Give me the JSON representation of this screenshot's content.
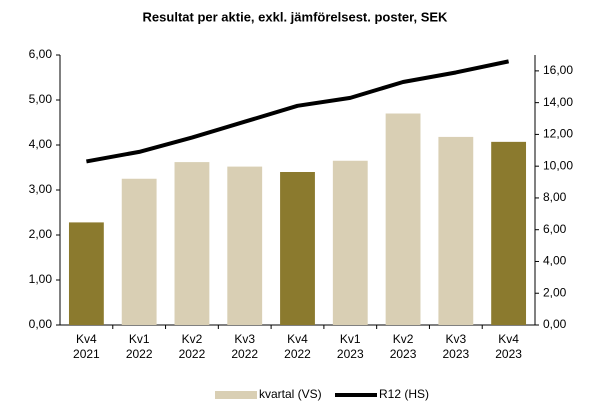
{
  "chart_data": {
    "type": "bar-line",
    "title": "Resultat per aktie, exkl. jämförelsest. poster, SEK",
    "categories": [
      [
        "Kv4",
        "2021"
      ],
      [
        "Kv1",
        "2022"
      ],
      [
        "Kv2",
        "2022"
      ],
      [
        "Kv3",
        "2022"
      ],
      [
        "Kv4",
        "2022"
      ],
      [
        "Kv1",
        "2023"
      ],
      [
        "Kv2",
        "2023"
      ],
      [
        "Kv3",
        "2023"
      ],
      [
        "Kv4",
        "2023"
      ]
    ],
    "series": [
      {
        "name": "kvartal (VS)",
        "type": "bar",
        "color": "#d9cfb4",
        "colors": [
          "#8b7a2e",
          "#d9cfb4",
          "#d9cfb4",
          "#d9cfb4",
          "#8b7a2e",
          "#d9cfb4",
          "#d9cfb4",
          "#d9cfb4",
          "#8b7a2e"
        ],
        "values": [
          2.28,
          3.25,
          3.62,
          3.52,
          3.4,
          3.65,
          4.7,
          4.18,
          4.07
        ]
      },
      {
        "name": "R12 (HS)",
        "type": "line",
        "axis": "y2",
        "color": "#000000",
        "values": [
          10.3,
          10.9,
          11.8,
          12.8,
          13.8,
          14.3,
          15.3,
          15.9,
          16.6
        ]
      }
    ],
    "ylim": [
      0,
      6
    ],
    "yticks": [
      {
        "value": 0,
        "label": "0,00"
      },
      {
        "value": 1,
        "label": "1,00"
      },
      {
        "value": 2,
        "label": "2,00"
      },
      {
        "value": 3,
        "label": "3,00"
      },
      {
        "value": 4,
        "label": "4,00"
      },
      {
        "value": 5,
        "label": "5,00"
      },
      {
        "value": 6,
        "label": "6,00"
      }
    ],
    "y2lim": [
      0,
      17
    ],
    "y2ticks": [
      {
        "value": 0,
        "label": "0,00"
      },
      {
        "value": 2,
        "label": "2,00"
      },
      {
        "value": 4,
        "label": "4,00"
      },
      {
        "value": 6,
        "label": "6,00"
      },
      {
        "value": 8,
        "label": "8,00"
      },
      {
        "value": 10,
        "label": "10,00"
      },
      {
        "value": 12,
        "label": "12,00"
      },
      {
        "value": 14,
        "label": "14,00"
      },
      {
        "value": 16,
        "label": "16,00"
      }
    ],
    "legend": "bottom"
  }
}
